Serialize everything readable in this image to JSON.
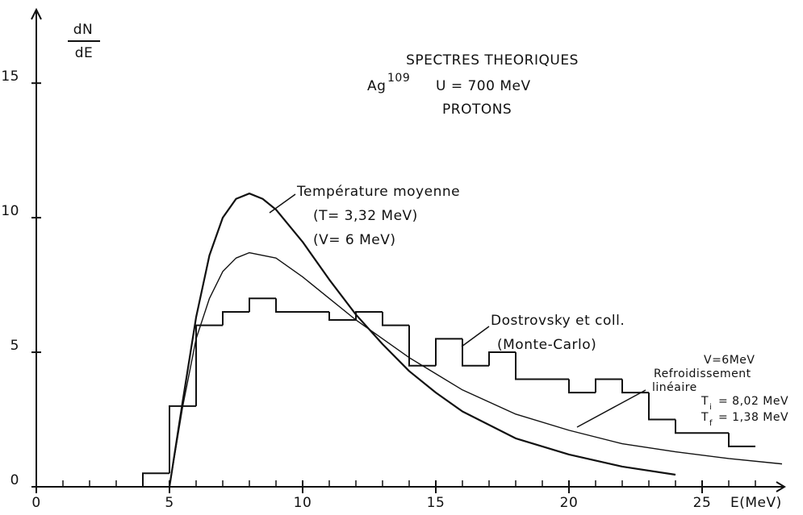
{
  "chart_data": {
    "type": "line",
    "title": "SPECTRES THEORIQUES",
    "ylabel_numerator": "dN",
    "ylabel_denominator": "dE",
    "xlabel": "E(MeV)",
    "target": "Ag",
    "target_mass": "109",
    "energy": "U = 700 MeV",
    "particles": "PROTONS",
    "annotations": {
      "mean_temperature": [
        "Température moyenne",
        "(T= 3,32 MeV)",
        "(V= 6    MeV)"
      ],
      "monte_carlo": [
        "Dostrovsky et coll.",
        "(Monte-Carlo)"
      ],
      "linear_cooling": [
        "V=6MeV",
        "Refroidissement",
        "linéaire"
      ],
      "ti": [
        "T",
        "i",
        "= 8,02 MeV"
      ],
      "tf": [
        "T",
        "f",
        "= 1,38 MeV"
      ]
    },
    "xlim": [
      0,
      28
    ],
    "ylim": [
      0,
      18
    ],
    "xticks": [
      0,
      5,
      10,
      15,
      20,
      25
    ],
    "xminorticks": [
      1,
      2,
      3,
      4,
      6,
      7,
      8,
      9,
      11,
      12,
      13,
      14,
      16,
      17,
      18,
      19,
      21,
      22,
      23,
      24,
      26,
      27
    ],
    "yticks": [
      0,
      5,
      10,
      15
    ],
    "histogram": {
      "bins": [
        4,
        5,
        6,
        7,
        8,
        9,
        10,
        11,
        12,
        13,
        14,
        15,
        16,
        17,
        18,
        19,
        20,
        21,
        22,
        23,
        24,
        25,
        26,
        27
      ],
      "values": [
        0.5,
        3,
        6,
        6.5,
        7,
        6.5,
        6.5,
        6.2,
        6.5,
        6,
        4.5,
        5.5,
        4.5,
        5,
        4,
        4,
        3.5,
        4,
        3.5,
        2.5,
        2,
        2,
        1.5
      ]
    },
    "series": [
      {
        "x": [
          5,
          5.5,
          6,
          6.5,
          7,
          7.5,
          8,
          8.5,
          9,
          10,
          11,
          12,
          13,
          14,
          15,
          16,
          18,
          20,
          22,
          24
        ],
        "values": [
          0,
          3.2,
          6.3,
          8.6,
          10,
          10.7,
          10.9,
          10.7,
          10.3,
          9.1,
          7.7,
          6.4,
          5.3,
          4.3,
          3.5,
          2.8,
          1.8,
          1.2,
          0.75,
          0.45
        ],
        "width": 2.2
      },
      {
        "x": [
          5,
          5.5,
          6,
          6.5,
          7,
          7.5,
          8,
          9,
          10,
          11,
          12,
          13,
          14,
          15,
          16,
          18,
          20,
          22,
          24,
          26,
          28
        ],
        "values": [
          0,
          3,
          5.5,
          7,
          8,
          8.5,
          8.7,
          8.5,
          7.8,
          7,
          6.2,
          5.5,
          4.8,
          4.2,
          3.6,
          2.7,
          2.1,
          1.6,
          1.3,
          1.05,
          0.85
        ],
        "width": 1.4
      }
    ]
  }
}
